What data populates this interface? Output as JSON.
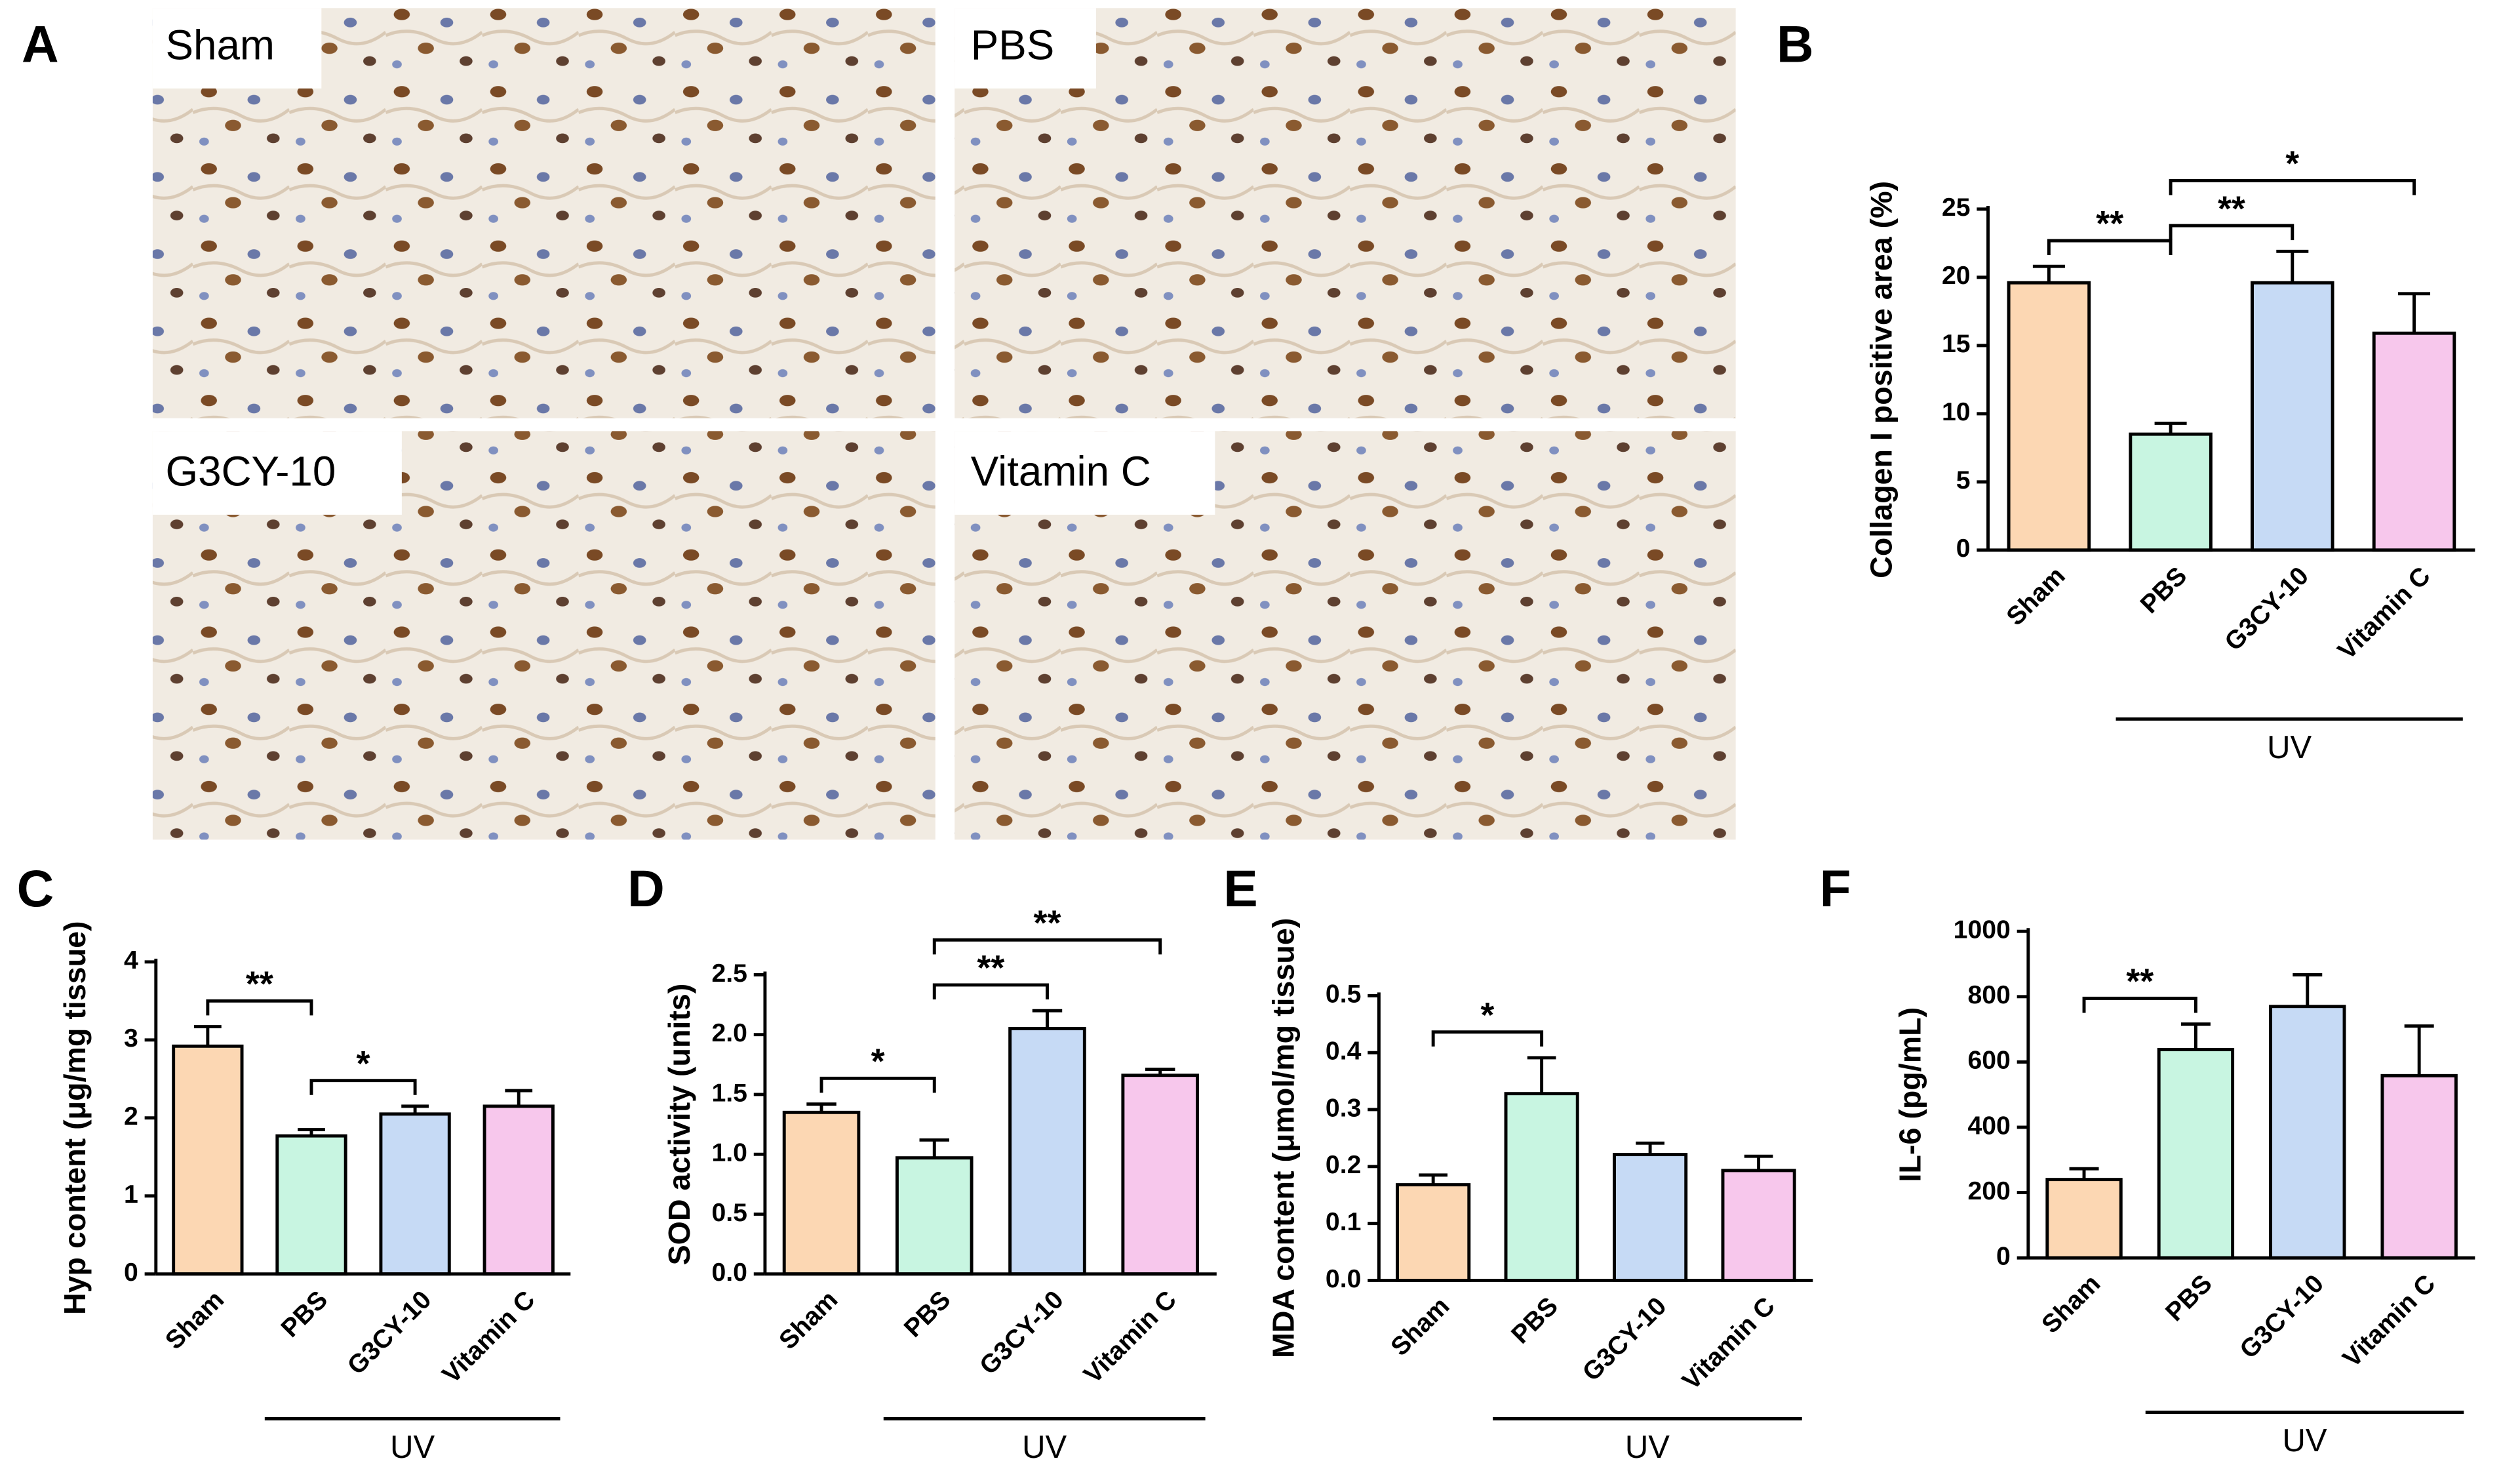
{
  "image_panel": {
    "panel_label": "A",
    "images": [
      "Sham",
      "PBS",
      "G3CY-10",
      "Vitamin C"
    ]
  },
  "chart_data": [
    {
      "type": "bar",
      "panel_label": "B",
      "ylabel": "Collagen I positive area (%)",
      "categories": [
        "Sham",
        "PBS",
        "G3CY-10",
        "Vitamin C"
      ],
      "values": [
        19.6,
        8.5,
        19.6,
        15.9
      ],
      "errors": [
        1.2,
        0.8,
        2.3,
        2.9
      ],
      "colors": [
        "#fcd7b3",
        "#c8f5e1",
        "#c6daf5",
        "#f7c7ec"
      ],
      "ylim": [
        0,
        25
      ],
      "yticks": [
        0,
        5,
        10,
        15,
        20,
        25
      ],
      "comparisons": [
        {
          "groups": [
            "Sham",
            "PBS"
          ],
          "label": "**"
        },
        {
          "groups": [
            "PBS",
            "G3CY-10"
          ],
          "label": "**"
        },
        {
          "groups": [
            "PBS",
            "Vitamin C"
          ],
          "label": "*"
        }
      ],
      "group_label": {
        "label": "UV",
        "groups": [
          "PBS",
          "Vitamin C"
        ]
      }
    },
    {
      "type": "bar",
      "panel_label": "C",
      "ylabel": "Hyp content (μg/mg tissue)",
      "categories": [
        "Sham",
        "PBS",
        "G3CY-10",
        "Vitamin C"
      ],
      "values": [
        2.92,
        1.77,
        2.05,
        2.15
      ],
      "errors": [
        0.25,
        0.08,
        0.1,
        0.2
      ],
      "colors": [
        "#fcd7b3",
        "#c8f5e1",
        "#c6daf5",
        "#f7c7ec"
      ],
      "ylim": [
        0,
        4
      ],
      "yticks": [
        0,
        1,
        2,
        3,
        4
      ],
      "comparisons": [
        {
          "groups": [
            "Sham",
            "PBS"
          ],
          "label": "**"
        },
        {
          "groups": [
            "PBS",
            "G3CY-10"
          ],
          "label": "*"
        }
      ],
      "group_label": {
        "label": "UV",
        "groups": [
          "PBS",
          "Vitamin C"
        ]
      }
    },
    {
      "type": "bar",
      "panel_label": "D",
      "ylabel": "SOD activity (units)",
      "categories": [
        "Sham",
        "PBS",
        "G3CY-10",
        "Vitamin C"
      ],
      "values": [
        1.35,
        0.97,
        2.05,
        1.66
      ],
      "errors": [
        0.07,
        0.15,
        0.15,
        0.05
      ],
      "colors": [
        "#fcd7b3",
        "#c8f5e1",
        "#c6daf5",
        "#f7c7ec"
      ],
      "ylim": [
        0,
        2.5
      ],
      "yticks": [
        {
          "value": 0,
          "label": "0.0"
        },
        0.5,
        {
          "value": 1,
          "label": "1.0"
        },
        1.5,
        {
          "value": 2,
          "label": "2.0"
        },
        2.5
      ],
      "comparisons": [
        {
          "groups": [
            "Sham",
            "PBS"
          ],
          "label": "*"
        },
        {
          "groups": [
            "PBS",
            "G3CY-10"
          ],
          "label": "**"
        },
        {
          "groups": [
            "PBS",
            "Vitamin C"
          ],
          "label": "**"
        }
      ],
      "group_label": {
        "label": "UV",
        "groups": [
          "PBS",
          "Vitamin C"
        ]
      }
    },
    {
      "type": "bar",
      "panel_label": "E",
      "ylabel": "MDA content (μmol/mg tissue)",
      "categories": [
        "Sham",
        "PBS",
        "G3CY-10",
        "Vitamin C"
      ],
      "values": [
        0.168,
        0.328,
        0.221,
        0.193
      ],
      "errors": [
        0.017,
        0.063,
        0.02,
        0.025
      ],
      "colors": [
        "#fcd7b3",
        "#c8f5e1",
        "#c6daf5",
        "#f7c7ec"
      ],
      "ylim": [
        0,
        0.5
      ],
      "yticks": [
        {
          "value": 0,
          "label": "0.0"
        },
        0.1,
        0.2,
        0.3,
        0.4,
        0.5
      ],
      "comparisons": [
        {
          "groups": [
            "Sham",
            "PBS"
          ],
          "label": "*"
        }
      ],
      "group_label": {
        "label": "UV",
        "groups": [
          "PBS",
          "Vitamin C"
        ]
      }
    },
    {
      "type": "bar",
      "panel_label": "F",
      "ylabel": "IL-6 (pg/mL)",
      "categories": [
        "Sham",
        "PBS",
        "G3CY-10",
        "Vitamin C"
      ],
      "values": [
        240,
        638,
        770,
        558
      ],
      "errors": [
        33,
        78,
        97,
        152
      ],
      "colors": [
        "#fcd7b3",
        "#c8f5e1",
        "#c6daf5",
        "#f7c7ec"
      ],
      "ylim": [
        0,
        1000
      ],
      "yticks": [
        0,
        200,
        400,
        600,
        800,
        1000
      ],
      "comparisons": [
        {
          "groups": [
            "Sham",
            "PBS"
          ],
          "label": "**"
        }
      ],
      "group_label": {
        "label": "UV",
        "groups": [
          "PBS",
          "Vitamin C"
        ]
      }
    }
  ]
}
